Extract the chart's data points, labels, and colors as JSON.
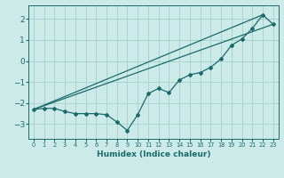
{
  "line1_x": [
    0,
    1,
    2,
    3,
    4,
    5,
    6,
    7,
    8,
    9,
    10,
    11,
    12,
    13,
    14,
    15,
    16,
    17,
    18,
    19,
    20,
    21,
    22,
    23
  ],
  "line1_y": [
    -2.3,
    -2.25,
    -2.25,
    -2.4,
    -2.5,
    -2.5,
    -2.5,
    -2.55,
    -2.9,
    -3.3,
    -2.55,
    -1.55,
    -1.3,
    -1.5,
    -0.9,
    -0.65,
    -0.55,
    -0.3,
    0.1,
    0.75,
    1.05,
    1.55,
    2.2,
    1.75
  ],
  "line2_x": [
    0,
    22
  ],
  "line2_y": [
    -2.3,
    2.2
  ],
  "line3_x": [
    0,
    23
  ],
  "line3_y": [
    -2.3,
    1.75
  ],
  "line_color": "#1a6b6b",
  "bg_color": "#cceae8",
  "grid_color": "#aad4d0",
  "xlabel": "Humidex (Indice chaleur)",
  "xlim": [
    -0.5,
    23.5
  ],
  "ylim": [
    -3.7,
    2.65
  ],
  "yticks": [
    -3,
    -2,
    -1,
    0,
    1,
    2
  ],
  "xticks": [
    0,
    1,
    2,
    3,
    4,
    5,
    6,
    7,
    8,
    9,
    10,
    11,
    12,
    13,
    14,
    15,
    16,
    17,
    18,
    19,
    20,
    21,
    22,
    23
  ],
  "xtick_labels": [
    "0",
    "1",
    "2",
    "3",
    "4",
    "5",
    "6",
    "7",
    "8",
    "9",
    "10",
    "11",
    "12",
    "13",
    "14",
    "15",
    "16",
    "17",
    "18",
    "19",
    "20",
    "21",
    "22",
    "23"
  ]
}
